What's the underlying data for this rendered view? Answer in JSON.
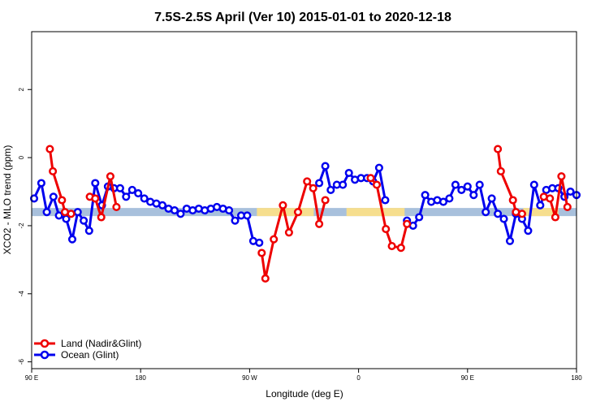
{
  "chart_data": {
    "type": "line",
    "title": "7.5S-2.5S April (Ver 10)   2015-01-01 to 2020-12-18",
    "xlabel": "Longitude (deg E)",
    "ylabel": "XCO2 - MLO trend (ppm)",
    "x_ticks": [
      {
        "value": 90,
        "label": "90 E"
      },
      {
        "value": 180,
        "label": "180"
      },
      {
        "value": 270,
        "label": "90 W"
      },
      {
        "value": 360,
        "label": "0"
      },
      {
        "value": 450,
        "label": "90 E"
      },
      {
        "value": 540,
        "label": "180"
      }
    ],
    "y_ticks": [
      {
        "value": 2,
        "label": "2"
      },
      {
        "value": 0,
        "label": "0"
      },
      {
        "value": -2,
        "label": "-2"
      },
      {
        "value": -4,
        "label": "-4"
      },
      {
        "value": -6,
        "label": "-6"
      }
    ],
    "xlim": [
      90,
      540
    ],
    "ylim": [
      -6.2,
      3.7
    ],
    "grid": false,
    "legend_position": "bottom-left",
    "reference_band": {
      "y": -1.6,
      "color": "#a8c0dc",
      "highlight_color": "#f6de8e",
      "highlight_ranges": [
        [
          276,
          323
        ],
        [
          350,
          398
        ],
        [
          496,
          525
        ]
      ]
    },
    "series": [
      {
        "name": "Land (Nadir&Glint)",
        "color": "#ee0000",
        "segments": [
          [
            [
              105,
              0.25
            ],
            [
              107.5,
              -0.4
            ],
            [
              115,
              -1.25
            ],
            [
              117.5,
              -1.6
            ],
            [
              122.5,
              -1.65
            ]
          ],
          [
            [
              138,
              -1.15
            ],
            [
              142.5,
              -1.2
            ],
            [
              147.5,
              -1.75
            ],
            [
              155,
              -0.55
            ],
            [
              160,
              -1.45
            ]
          ],
          [
            [
              280,
              -2.8
            ],
            [
              283,
              -3.55
            ],
            [
              290,
              -2.4
            ],
            [
              297.5,
              -1.4
            ],
            [
              302.5,
              -2.2
            ],
            [
              310,
              -1.6
            ],
            [
              317.5,
              -0.7
            ],
            [
              322.5,
              -0.9
            ],
            [
              327.5,
              -1.95
            ],
            [
              332.5,
              -1.25
            ]
          ],
          [
            [
              370,
              -0.6
            ],
            [
              375,
              -0.8
            ],
            [
              382.5,
              -2.1
            ],
            [
              387.5,
              -2.6
            ],
            [
              395,
              -2.65
            ],
            [
              400,
              -1.95
            ]
          ],
          [
            [
              475,
              0.25
            ],
            [
              477.5,
              -0.4
            ],
            [
              487.5,
              -1.25
            ],
            [
              490,
              -1.6
            ],
            [
              495,
              -1.65
            ]
          ],
          [
            [
              513,
              -1.15
            ],
            [
              518,
              -1.2
            ],
            [
              522.5,
              -1.75
            ],
            [
              527.5,
              -0.55
            ],
            [
              532.5,
              -1.45
            ]
          ]
        ]
      },
      {
        "name": "Ocean (Glint)",
        "color": "#0000ee",
        "segments": [
          [
            [
              92,
              -1.2
            ],
            [
              98,
              -0.75
            ],
            [
              102.5,
              -1.6
            ],
            [
              108,
              -1.15
            ],
            [
              112.5,
              -1.7
            ],
            [
              118.5,
              -1.8
            ],
            [
              123.5,
              -2.4
            ],
            [
              128,
              -1.6
            ],
            [
              133,
              -1.85
            ],
            [
              137.5,
              -2.15
            ],
            [
              142.5,
              -0.75
            ],
            [
              148,
              -1.4
            ],
            [
              153,
              -0.85
            ],
            [
              158,
              -0.9
            ],
            [
              163,
              -0.9
            ],
            [
              168,
              -1.15
            ],
            [
              173,
              -0.95
            ],
            [
              178,
              -1.05
            ],
            [
              183,
              -1.2
            ],
            [
              188,
              -1.3
            ],
            [
              193,
              -1.35
            ],
            [
              198,
              -1.4
            ],
            [
              203,
              -1.5
            ],
            [
              208,
              -1.55
            ],
            [
              213,
              -1.65
            ],
            [
              218,
              -1.5
            ],
            [
              223,
              -1.55
            ],
            [
              228,
              -1.5
            ],
            [
              233,
              -1.55
            ],
            [
              238,
              -1.5
            ],
            [
              243,
              -1.45
            ],
            [
              248,
              -1.5
            ],
            [
              253,
              -1.55
            ],
            [
              258,
              -1.85
            ],
            [
              263,
              -1.7
            ],
            [
              268,
              -1.7
            ],
            [
              273,
              -2.45
            ],
            [
              278,
              -2.5
            ]
          ],
          [
            [
              327.5,
              -0.75
            ],
            [
              332.5,
              -0.25
            ],
            [
              337,
              -0.95
            ],
            [
              342,
              -0.8
            ],
            [
              347,
              -0.8
            ],
            [
              352,
              -0.45
            ],
            [
              357,
              -0.65
            ],
            [
              362,
              -0.6
            ],
            [
              367,
              -0.6
            ],
            [
              372,
              -0.7
            ],
            [
              377,
              -0.3
            ],
            [
              382,
              -1.25
            ]
          ],
          [
            [
              400,
              -1.85
            ],
            [
              405,
              -2.0
            ],
            [
              410,
              -1.75
            ],
            [
              415,
              -1.1
            ],
            [
              420,
              -1.3
            ],
            [
              425,
              -1.25
            ],
            [
              430,
              -1.3
            ],
            [
              435,
              -1.2
            ],
            [
              440,
              -0.8
            ],
            [
              445,
              -0.95
            ],
            [
              450,
              -0.85
            ],
            [
              455,
              -1.1
            ],
            [
              460,
              -0.8
            ],
            [
              465,
              -1.6
            ],
            [
              470,
              -1.2
            ],
            [
              475,
              -1.65
            ],
            [
              480,
              -1.8
            ],
            [
              485,
              -2.45
            ],
            [
              490,
              -1.65
            ],
            [
              495,
              -1.8
            ],
            [
              500,
              -2.15
            ],
            [
              505,
              -0.8
            ],
            [
              510,
              -1.4
            ],
            [
              515,
              -0.95
            ],
            [
              520,
              -0.9
            ],
            [
              525,
              -0.9
            ],
            [
              530,
              -1.15
            ],
            [
              535,
              -1.0
            ],
            [
              540,
              -1.1
            ]
          ]
        ]
      }
    ]
  }
}
